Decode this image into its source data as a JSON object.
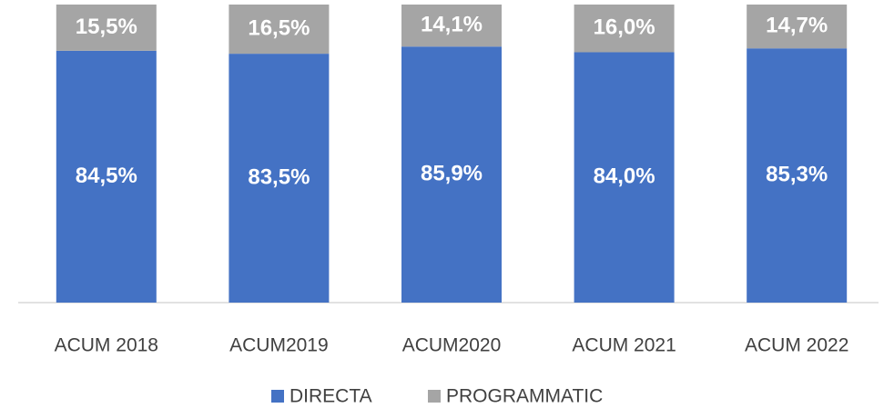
{
  "chart_data": {
    "type": "stacked_bar",
    "categories": [
      "ACUM 2018",
      "ACUM2019",
      "ACUM2020",
      "ACUM 2021",
      "ACUM 2022"
    ],
    "series": [
      {
        "name": "DIRECTA",
        "color": "#4472c4",
        "values": [
          84.5,
          83.5,
          85.9,
          84.0,
          85.3
        ],
        "value_labels": [
          "84,5%",
          "83,5%",
          "85,9%",
          "84,0%",
          "85,3%"
        ]
      },
      {
        "name": "PROGRAMMATIC",
        "color": "#a5a5a5",
        "values": [
          15.5,
          16.5,
          14.1,
          16.0,
          14.7
        ],
        "value_labels": [
          "15,5%",
          "16,5%",
          "14,1%",
          "16,0%",
          "14,7%"
        ]
      }
    ],
    "legend": "bottom"
  }
}
